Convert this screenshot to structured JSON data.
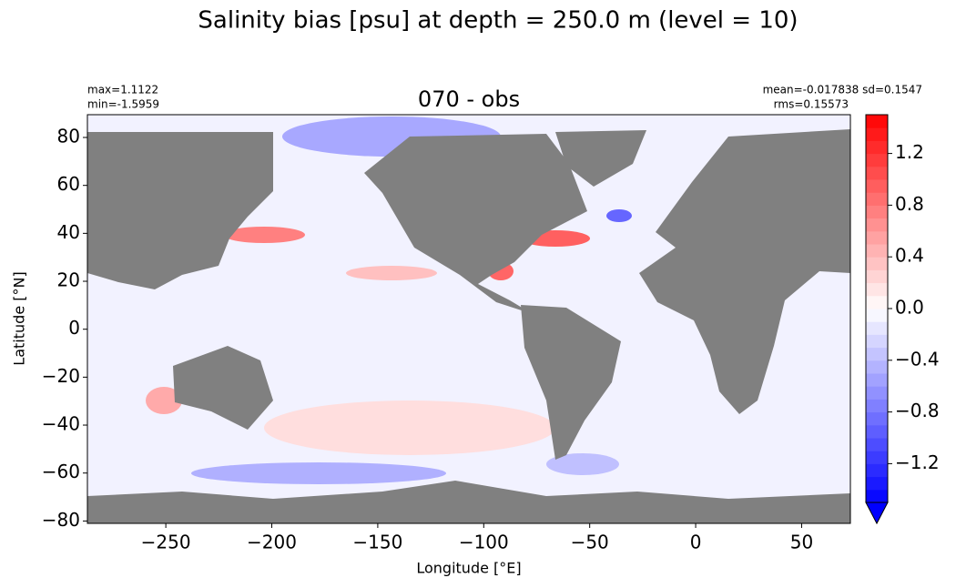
{
  "chart_data": {
    "type": "map",
    "title": "Salinity bias [psu] at depth = 250.0 m (level = 10)",
    "subtitle": "070 - obs",
    "x_label": "Longitude [°E]",
    "y_label": "Latitude [°N]",
    "annotations": {
      "max": "max=1.1122",
      "min": "min=-1.5959",
      "mean_sd": "mean=-0.017838 sd=0.1547",
      "rms": "rms=0.15573"
    },
    "xlim": [
      -287,
      73
    ],
    "ylim": [
      -81,
      89.5
    ],
    "xticks": [
      {
        "value": -250,
        "label": "−250"
      },
      {
        "value": -200,
        "label": "−200"
      },
      {
        "value": -150,
        "label": "−150"
      },
      {
        "value": -100,
        "label": "−100"
      },
      {
        "value": -50,
        "label": "−50"
      },
      0,
      50
    ],
    "yticks": [
      {
        "value": -80,
        "label": "−80"
      },
      {
        "value": -60,
        "label": "−60"
      },
      {
        "value": -40,
        "label": "−40"
      },
      {
        "value": -20,
        "label": "−20"
      },
      0,
      20,
      40,
      60,
      80
    ],
    "colorbar": {
      "colormap": "bwr",
      "clim": [
        -1.5,
        1.5
      ],
      "extend_min": true,
      "ticks": [
        {
          "value": -1.2,
          "label": "−1.2"
        },
        {
          "value": -0.8,
          "label": "−0.8"
        },
        {
          "value": -0.4,
          "label": "−0.4"
        },
        {
          "value": 0,
          "label": "0.0"
        },
        {
          "value": 0.4,
          "label": "0.4"
        },
        {
          "value": 0.8,
          "label": "0.8"
        },
        {
          "value": 1.2,
          "label": "1.2"
        }
      ]
    },
    "land_color": "#808080"
  }
}
